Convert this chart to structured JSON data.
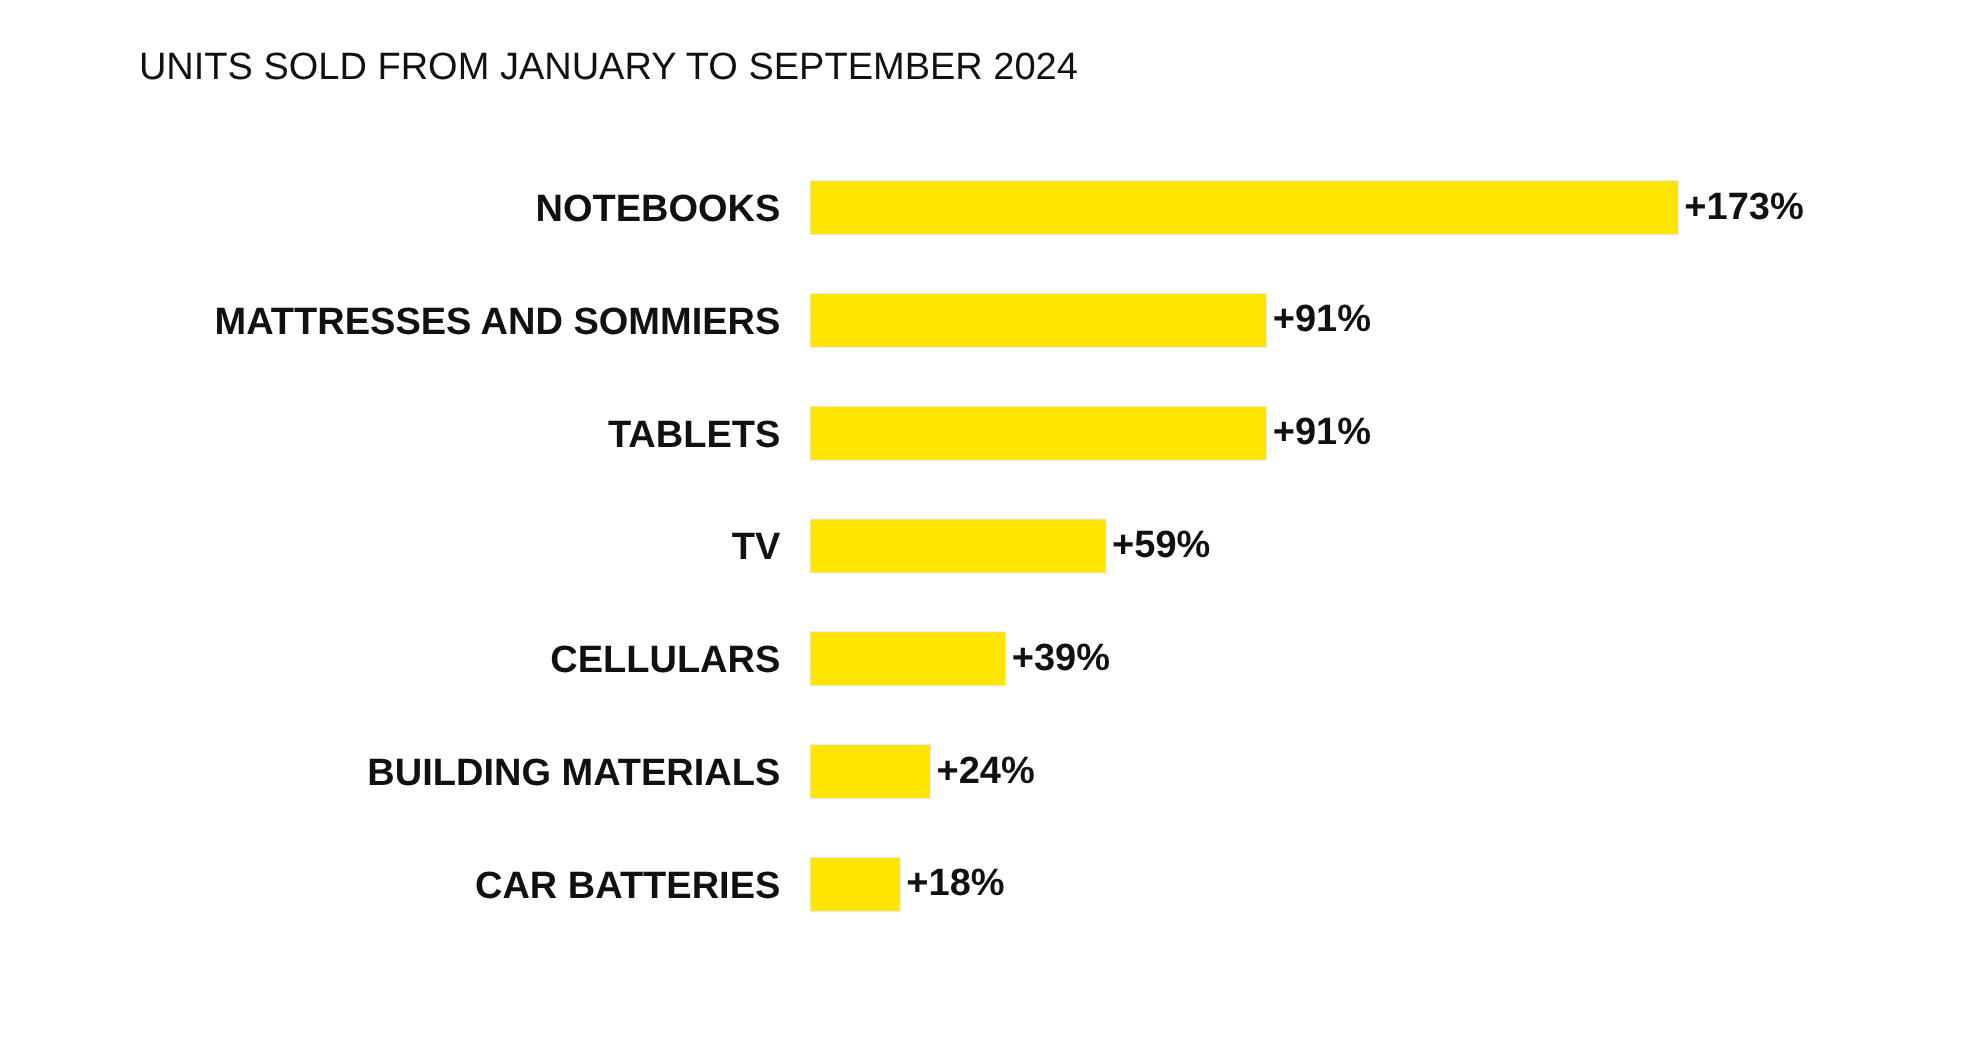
{
  "chart_data": {
    "type": "bar",
    "orientation": "horizontal",
    "title": "UNITS SOLD FROM JANUARY TO SEPTEMBER 2024",
    "categories": [
      "NOTEBOOKS",
      "MATTRESSES AND SOMMIERS",
      "TABLETS",
      "TV",
      "CELLULARS",
      "BUILDING MATERIALS",
      "CAR BATTERIES"
    ],
    "values": [
      173,
      91,
      91,
      59,
      39,
      24,
      18
    ],
    "value_labels": [
      "+173%",
      "+91%",
      "+91%",
      "+59%",
      "+39%",
      "+24%",
      "+18%"
    ],
    "color": "#ffe500",
    "tick_labels": "y",
    "legend": false
  }
}
